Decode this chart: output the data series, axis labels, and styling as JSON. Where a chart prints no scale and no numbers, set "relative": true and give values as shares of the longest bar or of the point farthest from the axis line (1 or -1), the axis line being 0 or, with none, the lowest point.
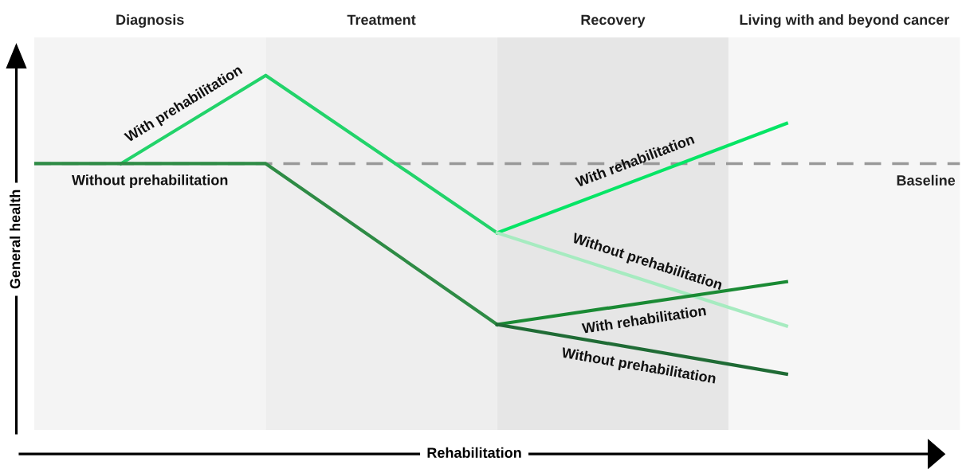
{
  "chart_data": {
    "type": "line",
    "relative": true,
    "xlabel": "Rehabilitation",
    "ylabel": "General health",
    "legend": false,
    "line_style": "solid",
    "categories": [
      null,
      null,
      null,
      null,
      null,
      null,
      null,
      null,
      null,
      null,
      null,
      null,
      null,
      null,
      null,
      null,
      null,
      null,
      null,
      null,
      null,
      null,
      null,
      null,
      null,
      null,
      null,
      null,
      null,
      null,
      null,
      null,
      null
    ],
    "series": [
      {
        "name": "With prehabilitation",
        "color": "#22d36a",
        "values": [
          null,
          null,
          null,
          0.767,
          null,
          null,
          null,
          null,
          1.0,
          null,
          null,
          null,
          null,
          null,
          null,
          null,
          0.584,
          null,
          null,
          null,
          null,
          null,
          null,
          null,
          null,
          null,
          null,
          null,
          null,
          null,
          null,
          null,
          null
        ]
      },
      {
        "name": "Without prehabilitation",
        "color": "#2e8b45",
        "values": [
          0.767,
          null,
          null,
          null,
          null,
          null,
          null,
          null,
          0.767,
          null,
          null,
          null,
          null,
          null,
          null,
          null,
          0.342,
          null,
          null,
          null,
          null,
          null,
          null,
          null,
          null,
          null,
          null,
          null,
          null,
          null,
          null,
          null,
          null
        ]
      },
      {
        "name": "With rehabilitation",
        "color": "#05e565",
        "values": [
          null,
          null,
          null,
          null,
          null,
          null,
          null,
          null,
          null,
          null,
          null,
          null,
          null,
          null,
          null,
          null,
          0.584,
          null,
          null,
          null,
          null,
          null,
          null,
          null,
          null,
          null,
          0.873,
          null,
          null,
          null,
          null,
          null,
          null
        ]
      },
      {
        "name": "Without prehabilitation",
        "color": "#a6ebc0",
        "values": [
          null,
          null,
          null,
          null,
          null,
          null,
          null,
          null,
          null,
          null,
          null,
          null,
          null,
          null,
          null,
          null,
          0.584,
          null,
          null,
          null,
          null,
          null,
          null,
          null,
          null,
          null,
          0.338,
          null,
          null,
          null,
          null,
          null,
          null
        ]
      },
      {
        "name": "With rehabilitation",
        "color": "#1a8a34",
        "values": [
          null,
          null,
          null,
          null,
          null,
          null,
          null,
          null,
          null,
          null,
          null,
          null,
          null,
          null,
          null,
          null,
          0.342,
          null,
          null,
          null,
          null,
          null,
          null,
          null,
          null,
          null,
          0.455,
          null,
          null,
          null,
          null,
          null,
          null
        ]
      },
      {
        "name": "Without prehabilitation",
        "color": "#1f6b35",
        "values": [
          null,
          null,
          null,
          null,
          null,
          null,
          null,
          null,
          null,
          null,
          null,
          null,
          null,
          null,
          null,
          null,
          0.342,
          null,
          null,
          null,
          null,
          null,
          null,
          null,
          null,
          null,
          0.211,
          null,
          null,
          null,
          null,
          null,
          null
        ]
      }
    ],
    "annotations": [
      "Diagnosis",
      "Treatment",
      "Recovery",
      "Living with and beyond cancer"
    ],
    "ref_lines": [
      {
        "axis": "y",
        "value": 0.767,
        "label": "Baseline",
        "color": "#999999",
        "line_style": "dashed"
      }
    ]
  }
}
